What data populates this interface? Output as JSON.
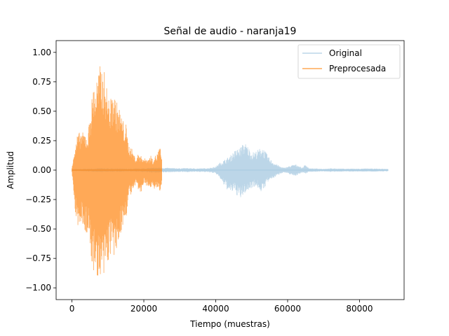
{
  "chart_data": {
    "type": "line",
    "title": "Señal de audio - naranja19",
    "xlabel": "Tiempo (muestras)",
    "ylabel": "Amplitud",
    "xlim": [
      -4400,
      92400
    ],
    "ylim": [
      -1.1,
      1.1
    ],
    "x_ticks": [
      0,
      20000,
      40000,
      60000,
      80000
    ],
    "x_tick_labels": [
      "0",
      "20000",
      "40000",
      "60000",
      "80000"
    ],
    "y_ticks": [
      -1.0,
      -0.75,
      -0.5,
      -0.25,
      0.0,
      0.25,
      0.5,
      0.75,
      1.0
    ],
    "y_tick_labels": [
      "−1.00",
      "−0.75",
      "−0.50",
      "−0.25",
      "0.00",
      "0.25",
      "0.50",
      "0.75",
      "1.00"
    ],
    "grid": false,
    "legend_position": "top-right",
    "series": [
      {
        "name": "Original",
        "color": "#a6c8e0",
        "alpha": 0.75,
        "envelope": {
          "x": [
            0,
            2000,
            4000,
            6000,
            8000,
            10000,
            12000,
            14000,
            16000,
            18000,
            20000,
            22000,
            24000,
            26000,
            28000,
            30000,
            32000,
            34000,
            36000,
            38000,
            40000,
            41000,
            42000,
            43000,
            44000,
            45000,
            46000,
            47000,
            48000,
            49000,
            50000,
            51000,
            52000,
            53000,
            54000,
            55000,
            56000,
            57000,
            58000,
            59000,
            60000,
            61000,
            62000,
            63000,
            64000,
            65000,
            66000,
            68000,
            70000,
            72000,
            74000,
            76000,
            78000,
            80000,
            82000,
            84000,
            86000,
            88000
          ],
          "upper": [
            0.008,
            0.01,
            0.012,
            0.014,
            0.016,
            0.015,
            0.014,
            0.013,
            0.012,
            0.014,
            0.016,
            0.02,
            0.022,
            0.02,
            0.018,
            0.016,
            0.018,
            0.015,
            0.015,
            0.018,
            0.03,
            0.06,
            0.08,
            0.1,
            0.12,
            0.16,
            0.18,
            0.2,
            0.24,
            0.2,
            0.15,
            0.16,
            0.18,
            0.2,
            0.15,
            0.1,
            0.07,
            0.05,
            0.03,
            0.02,
            0.03,
            0.04,
            0.05,
            0.04,
            0.02,
            0.05,
            0.015,
            0.014,
            0.012,
            0.015,
            0.014,
            0.012,
            0.013,
            0.012,
            0.014,
            0.013,
            0.012,
            0.01
          ],
          "lower": [
            -0.008,
            -0.01,
            -0.012,
            -0.014,
            -0.016,
            -0.015,
            -0.014,
            -0.013,
            -0.012,
            -0.014,
            -0.016,
            -0.02,
            -0.022,
            -0.02,
            -0.018,
            -0.016,
            -0.018,
            -0.015,
            -0.015,
            -0.018,
            -0.03,
            -0.06,
            -0.12,
            -0.16,
            -0.2,
            -0.18,
            -0.22,
            -0.25,
            -0.2,
            -0.18,
            -0.15,
            -0.14,
            -0.16,
            -0.2,
            -0.12,
            -0.09,
            -0.07,
            -0.05,
            -0.03,
            -0.02,
            -0.03,
            -0.04,
            -0.05,
            -0.04,
            -0.02,
            -0.03,
            -0.015,
            -0.014,
            -0.012,
            -0.015,
            -0.014,
            -0.012,
            -0.013,
            -0.012,
            -0.014,
            -0.013,
            -0.012,
            -0.01
          ]
        }
      },
      {
        "name": "Preprocesada",
        "color": "#ff8c1f",
        "alpha": 0.75,
        "envelope": {
          "x": [
            0,
            500,
            1000,
            1500,
            2000,
            2500,
            3000,
            3500,
            4000,
            4500,
            5000,
            5500,
            6000,
            6500,
            7000,
            7500,
            8000,
            8500,
            9000,
            9500,
            10000,
            10500,
            11000,
            11500,
            12000,
            12500,
            13000,
            13500,
            14000,
            14500,
            15000,
            15500,
            16000,
            16500,
            17000,
            17500,
            18000,
            18500,
            19000,
            19500,
            20000,
            20500,
            21000,
            21500,
            22000,
            22500,
            23000,
            23500,
            24000,
            24500,
            25000
          ],
          "upper": [
            0.02,
            0.15,
            0.2,
            0.3,
            0.32,
            0.33,
            0.32,
            0.33,
            0.3,
            0.31,
            0.5,
            0.6,
            0.75,
            0.72,
            0.8,
            0.85,
            0.91,
            0.85,
            0.84,
            0.75,
            0.65,
            0.6,
            0.62,
            0.68,
            0.63,
            0.58,
            0.55,
            0.5,
            0.45,
            0.4,
            0.4,
            0.27,
            0.2,
            0.2,
            0.15,
            0.12,
            0.1,
            0.15,
            0.12,
            0.12,
            0.1,
            0.1,
            0.1,
            0.1,
            0.13,
            0.08,
            0.13,
            0.12,
            0.17,
            0.2,
            0.1
          ],
          "lower": [
            -0.02,
            -0.2,
            -0.4,
            -0.5,
            -0.46,
            -0.48,
            -0.47,
            -0.52,
            -0.55,
            -0.55,
            -0.7,
            -0.8,
            -0.9,
            -0.85,
            -0.9,
            -0.96,
            -1.0,
            -0.98,
            -0.95,
            -0.88,
            -0.8,
            -0.72,
            -0.74,
            -0.78,
            -0.75,
            -0.7,
            -0.62,
            -0.55,
            -0.5,
            -0.45,
            -0.42,
            -0.3,
            -0.2,
            -0.22,
            -0.18,
            -0.15,
            -0.12,
            -0.18,
            -0.2,
            -0.2,
            -0.1,
            -0.12,
            -0.15,
            -0.18,
            -0.15,
            -0.14,
            -0.16,
            -0.15,
            -0.17,
            -0.2,
            -0.1
          ]
        }
      }
    ]
  }
}
